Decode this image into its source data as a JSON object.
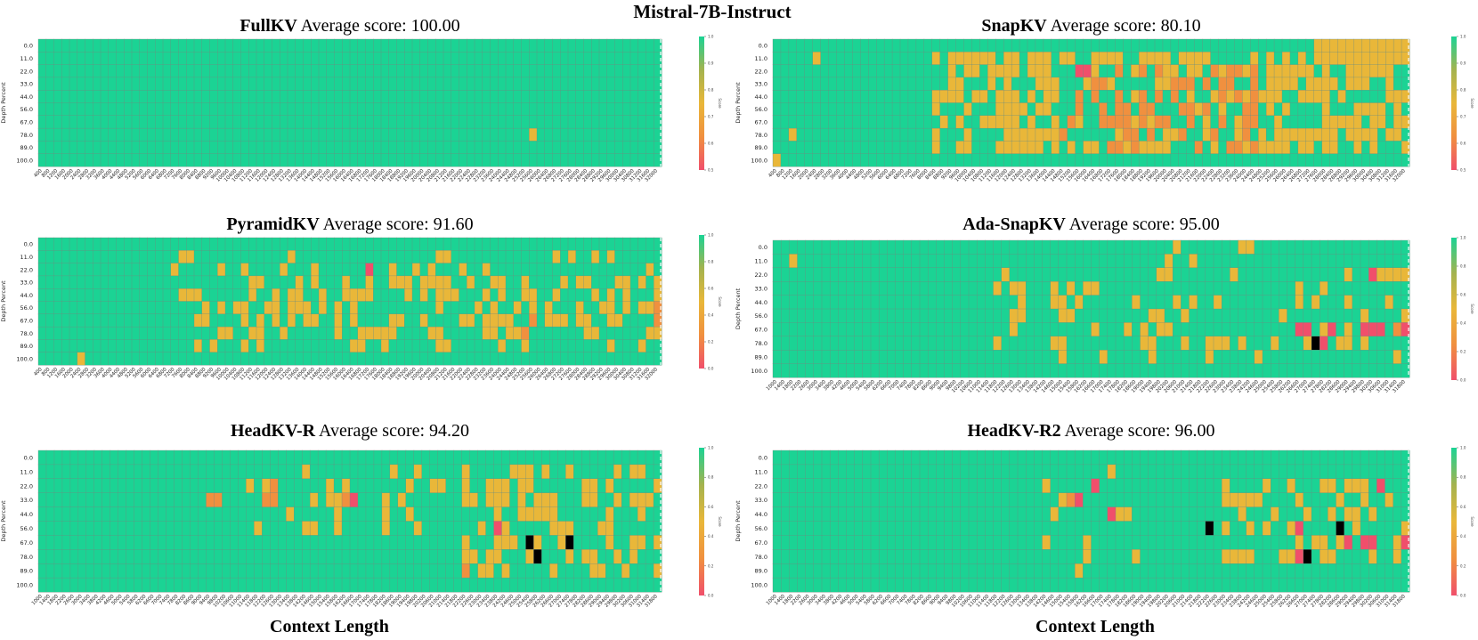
{
  "figure": {
    "title": "Mistral-7B-Instruct",
    "score_label": "Average score:",
    "bottom_xlabel": "Context Length"
  },
  "colors": {
    "high": "#1bd394",
    "upper_mid": "#a4b34f",
    "mid": "#e9b739",
    "lower_mid": "#f0903f",
    "low": "#f04f6b",
    "grid": "#6d8d80"
  },
  "chart_data": [
    {
      "type": "heatmap",
      "name": "FullKV",
      "score": "100.00",
      "ylabel": "Depth Percent",
      "colorbar_label": "Score",
      "colorbar_ticks": [
        "1.0",
        "0.9",
        "0.8",
        "0.7",
        "0.6",
        "0.5"
      ],
      "y": [
        "0.0",
        "11.0",
        "22.0",
        "33.0",
        "44.0",
        "56.0",
        "67.0",
        "78.0",
        "89.0",
        "100.0"
      ],
      "x": [
        "400",
        "800",
        "1200",
        "1600",
        "2000",
        "2400",
        "2800",
        "3200",
        "3600",
        "4000",
        "4400",
        "4800",
        "5200",
        "5600",
        "6000",
        "6400",
        "6800",
        "7200",
        "7600",
        "8000",
        "8400",
        "8800",
        "9200",
        "9600",
        "10000",
        "10400",
        "10800",
        "11200",
        "11600",
        "12000",
        "12400",
        "12800",
        "13200",
        "13600",
        "14000",
        "14400",
        "14800",
        "15200",
        "15600",
        "16000",
        "16400",
        "16800",
        "17200",
        "17600",
        "18000",
        "18400",
        "18800",
        "19200",
        "19600",
        "20000",
        "20400",
        "20800",
        "21200",
        "21600",
        "22000",
        "22400",
        "22800",
        "23200",
        "23600",
        "24000",
        "24400",
        "24800",
        "25200",
        "25600",
        "26000",
        "26400",
        "26800",
        "27200",
        "27600",
        "28000",
        "28400",
        "28800",
        "29200",
        "29600",
        "30000",
        "30400",
        "30800",
        "31200",
        "31600",
        "32000"
      ],
      "cells": [
        [
          7,
          63,
          2
        ]
      ]
    },
    {
      "type": "heatmap",
      "name": "SnapKV",
      "score": "80.10",
      "ylabel": "Depth Percent",
      "colorbar_label": "Score",
      "colorbar_ticks": [
        "1.0",
        "0.9",
        "0.8",
        "0.7",
        "0.6",
        "0.5"
      ],
      "y": [
        "0.0",
        "11.0",
        "22.0",
        "33.0",
        "44.0",
        "56.0",
        "67.0",
        "78.0",
        "89.0",
        "100.0"
      ],
      "x": [
        "400",
        "800",
        "1200",
        "1600",
        "2000",
        "2400",
        "2800",
        "3200",
        "3600",
        "4000",
        "4400",
        "4800",
        "5200",
        "5600",
        "6000",
        "6400",
        "6800",
        "7200",
        "7600",
        "8000",
        "8400",
        "8800",
        "9200",
        "9600",
        "10000",
        "10400",
        "10800",
        "11200",
        "11600",
        "12000",
        "12400",
        "12800",
        "13200",
        "13600",
        "14000",
        "14400",
        "14800",
        "15200",
        "15600",
        "16000",
        "16400",
        "16800",
        "17200",
        "17600",
        "18000",
        "18400",
        "18800",
        "19200",
        "19600",
        "20000",
        "20400",
        "20800",
        "21200",
        "21600",
        "22000",
        "22400",
        "22800",
        "23200",
        "23600",
        "24000",
        "24400",
        "24800",
        "25200",
        "25600",
        "26000",
        "26400",
        "26800",
        "27200",
        "27600",
        "28000",
        "28400",
        "28800",
        "29200",
        "29600",
        "30000",
        "30400",
        "30800",
        "31200",
        "31600",
        "32000"
      ],
      "regions": [
        [
          1,
          8,
          20,
          79,
          2,
          0.62
        ],
        [
          2,
          8,
          36,
          60,
          3,
          0.35
        ],
        [
          0,
          1,
          68,
          79,
          2,
          1.0
        ]
      ],
      "cells": [
        [
          9,
          0,
          2
        ],
        [
          2,
          38,
          4
        ],
        [
          2,
          39,
          4
        ],
        [
          3,
          41,
          3
        ],
        [
          7,
          2,
          2
        ],
        [
          1,
          5,
          2
        ]
      ]
    },
    {
      "type": "heatmap",
      "name": "PyramidKV",
      "score": "91.60",
      "ylabel": "Depth Percent",
      "colorbar_label": "Score",
      "colorbar_ticks": [
        "1.0",
        "0.8",
        "0.6",
        "0.4",
        "0.2",
        "0.0"
      ],
      "y": [
        "0.0",
        "11.0",
        "22.0",
        "33.0",
        "44.0",
        "56.0",
        "67.0",
        "78.0",
        "89.0",
        "100.0"
      ],
      "x": [
        "400",
        "800",
        "1200",
        "1600",
        "2000",
        "2400",
        "2800",
        "3200",
        "3600",
        "4000",
        "4400",
        "4800",
        "5200",
        "5600",
        "6000",
        "6400",
        "6800",
        "7200",
        "7600",
        "8000",
        "8400",
        "8800",
        "9200",
        "9600",
        "10000",
        "10400",
        "10800",
        "11200",
        "11600",
        "12000",
        "12400",
        "12800",
        "13200",
        "13600",
        "14000",
        "14400",
        "14800",
        "15200",
        "15600",
        "16000",
        "16400",
        "16800",
        "17200",
        "17600",
        "18000",
        "18400",
        "18800",
        "19200",
        "19600",
        "20000",
        "20400",
        "20800",
        "21200",
        "21600",
        "22000",
        "22400",
        "22800",
        "23200",
        "23600",
        "24000",
        "24400",
        "24800",
        "25200",
        "25600",
        "26000",
        "26400",
        "26800",
        "27200",
        "27600",
        "28000",
        "28400",
        "28800",
        "29200",
        "29600",
        "30000",
        "30400",
        "30800",
        "31200",
        "31600",
        "32000"
      ],
      "regions": [
        [
          3,
          8,
          18,
          79,
          2,
          0.42
        ],
        [
          1,
          2,
          16,
          78,
          2,
          0.14
        ]
      ],
      "cells": [
        [
          2,
          42,
          4
        ],
        [
          6,
          63,
          3
        ],
        [
          7,
          62,
          3
        ],
        [
          5,
          79,
          3
        ],
        [
          6,
          79,
          3
        ],
        [
          9,
          5,
          2
        ]
      ]
    },
    {
      "type": "heatmap",
      "name": "Ada-SnapKV",
      "score": "95.00",
      "ylabel": "Depth Percent",
      "colorbar_label": "Score",
      "colorbar_ticks": [
        "1.0",
        "0.8",
        "0.6",
        "0.4",
        "0.2",
        "0.0"
      ],
      "y": [
        "0.0",
        "11.0",
        "22.0",
        "33.0",
        "44.0",
        "56.0",
        "67.0",
        "78.0",
        "89.0",
        "100.0"
      ],
      "x": [
        "1000",
        "1400",
        "1800",
        "2200",
        "2600",
        "3000",
        "3400",
        "3800",
        "4200",
        "4600",
        "5000",
        "5400",
        "5800",
        "6200",
        "6600",
        "7000",
        "7400",
        "7800",
        "8200",
        "8600",
        "9000",
        "9400",
        "9800",
        "10200",
        "10600",
        "11000",
        "11400",
        "11800",
        "12200",
        "12600",
        "13000",
        "13400",
        "13800",
        "14200",
        "14600",
        "15000",
        "15400",
        "15800",
        "16200",
        "16600",
        "17000",
        "17400",
        "17800",
        "18200",
        "18600",
        "19000",
        "19400",
        "19800",
        "20200",
        "20600",
        "21000",
        "21400",
        "21800",
        "22200",
        "22600",
        "23000",
        "23400",
        "23800",
        "24200",
        "24600",
        "25000",
        "25400",
        "25800",
        "26200",
        "26600",
        "27000",
        "27400",
        "27800",
        "28200",
        "28600",
        "29000",
        "29400",
        "29800",
        "30200",
        "30600",
        "31000",
        "31400",
        "31800"
      ],
      "regions": [
        [
          2,
          8,
          27,
          78,
          2,
          0.22
        ],
        [
          0,
          2,
          38,
          78,
          2,
          0.06
        ]
      ],
      "cells": [
        [
          6,
          64,
          4
        ],
        [
          6,
          65,
          4
        ],
        [
          6,
          68,
          4
        ],
        [
          7,
          66,
          5
        ],
        [
          7,
          67,
          4
        ],
        [
          6,
          72,
          4
        ],
        [
          6,
          73,
          4
        ],
        [
          6,
          74,
          4
        ],
        [
          6,
          76,
          3
        ],
        [
          6,
          77,
          4
        ],
        [
          2,
          73,
          4
        ],
        [
          1,
          2,
          2
        ]
      ]
    },
    {
      "type": "heatmap",
      "name": "HeadKV-R",
      "score": "94.20",
      "ylabel": "Depth Percent",
      "colorbar_label": "Score",
      "colorbar_ticks": [
        "1.0",
        "0.8",
        "0.6",
        "0.4",
        "0.2",
        "0.0"
      ],
      "y": [
        "0.0",
        "11.0",
        "22.0",
        "33.0",
        "44.0",
        "56.0",
        "67.0",
        "78.0",
        "89.0",
        "100.0"
      ],
      "x": [
        "1000",
        "1400",
        "1800",
        "2200",
        "2600",
        "3000",
        "3400",
        "3800",
        "4200",
        "4600",
        "5000",
        "5400",
        "5800",
        "6200",
        "6600",
        "7000",
        "7400",
        "7800",
        "8200",
        "8600",
        "9000",
        "9400",
        "9800",
        "10200",
        "10600",
        "11000",
        "11400",
        "11800",
        "12200",
        "12600",
        "13000",
        "13400",
        "13800",
        "14200",
        "14600",
        "15000",
        "15400",
        "15800",
        "16200",
        "16600",
        "17000",
        "17400",
        "17800",
        "18200",
        "18600",
        "19000",
        "19400",
        "19800",
        "20200",
        "20600",
        "21000",
        "21400",
        "21800",
        "22200",
        "22600",
        "23000",
        "23400",
        "23800",
        "24200",
        "24600",
        "25000",
        "25400",
        "25800",
        "26200",
        "26600",
        "27000",
        "27400",
        "27800",
        "28200",
        "28600",
        "29000",
        "29400",
        "29800",
        "30200",
        "30600",
        "31000",
        "31400",
        "31800"
      ],
      "regions": [
        [
          1,
          5,
          25,
          50,
          2,
          0.22
        ],
        [
          1,
          8,
          53,
          77,
          2,
          0.35
        ]
      ],
      "cells": [
        [
          3,
          28,
          3
        ],
        [
          3,
          29,
          3
        ],
        [
          3,
          38,
          3
        ],
        [
          3,
          39,
          4
        ],
        [
          2,
          29,
          3
        ],
        [
          5,
          57,
          4
        ],
        [
          6,
          61,
          5
        ],
        [
          6,
          66,
          5
        ],
        [
          7,
          62,
          5
        ],
        [
          8,
          53,
          3
        ],
        [
          3,
          21,
          3
        ],
        [
          3,
          22,
          3
        ]
      ]
    },
    {
      "type": "heatmap",
      "name": "HeadKV-R2",
      "score": "96.00",
      "ylabel": "Depth Percent",
      "colorbar_label": "Score",
      "colorbar_ticks": [
        "1.0",
        "0.8",
        "0.6",
        "0.4",
        "0.2",
        "0.0"
      ],
      "y": [
        "0.0",
        "11.0",
        "22.0",
        "33.0",
        "44.0",
        "56.0",
        "67.0",
        "78.0",
        "89.0",
        "100.0"
      ],
      "x": [
        "1000",
        "1400",
        "1800",
        "2200",
        "2600",
        "3000",
        "3400",
        "3800",
        "4200",
        "4600",
        "5000",
        "5400",
        "5800",
        "6200",
        "6600",
        "7000",
        "7400",
        "7800",
        "8200",
        "8600",
        "9000",
        "9400",
        "9800",
        "10200",
        "10600",
        "11000",
        "11400",
        "11800",
        "12200",
        "12600",
        "13000",
        "13400",
        "13800",
        "14200",
        "14600",
        "15000",
        "15400",
        "15800",
        "16200",
        "16600",
        "17000",
        "17400",
        "17800",
        "18200",
        "18600",
        "19000",
        "19400",
        "19800",
        "20200",
        "20600",
        "21000",
        "21400",
        "21800",
        "22200",
        "22600",
        "23000",
        "23400",
        "23800",
        "24200",
        "24600",
        "25000",
        "25400",
        "25800",
        "26200",
        "26600",
        "27000",
        "27400",
        "27800",
        "28200",
        "28600",
        "29000",
        "29400",
        "29800",
        "30200",
        "30600",
        "31000",
        "31400",
        "31800"
      ],
      "regions": [
        [
          1,
          8,
          33,
          45,
          2,
          0.12
        ],
        [
          2,
          7,
          55,
          78,
          2,
          0.3
        ]
      ],
      "cells": [
        [
          3,
          36,
          3
        ],
        [
          3,
          37,
          4
        ],
        [
          2,
          39,
          4
        ],
        [
          5,
          53,
          5
        ],
        [
          5,
          64,
          4
        ],
        [
          5,
          69,
          5
        ],
        [
          6,
          70,
          4
        ],
        [
          6,
          72,
          4
        ],
        [
          6,
          73,
          4
        ],
        [
          6,
          77,
          4
        ],
        [
          7,
          64,
          4
        ],
        [
          7,
          65,
          5
        ],
        [
          2,
          74,
          4
        ],
        [
          4,
          41,
          4
        ]
      ]
    }
  ]
}
